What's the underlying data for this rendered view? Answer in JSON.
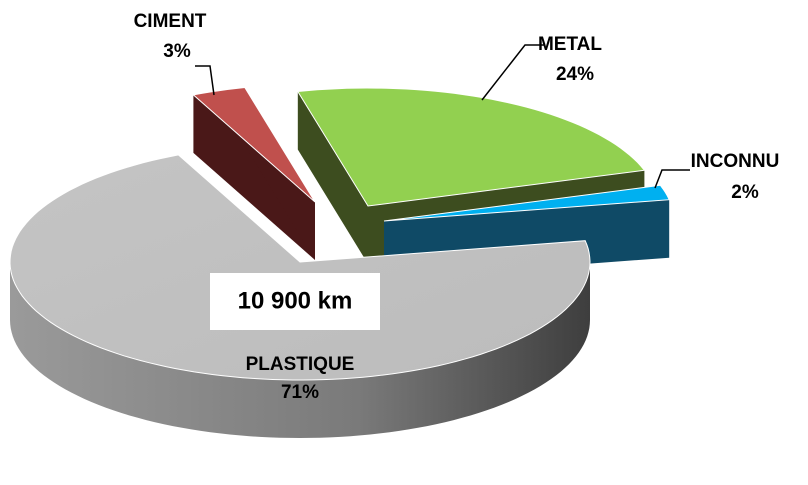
{
  "chart_data": {
    "type": "pie",
    "categories": [
      "METAL",
      "INCONNU",
      "PLASTIQUE",
      "CIMENT"
    ],
    "values": [
      24,
      2,
      71,
      3
    ],
    "value_labels": [
      "24%",
      "2%",
      "71%",
      "3%"
    ],
    "colors": [
      "#92d050",
      "#00b0f0",
      "#c0c0c0",
      "#c0504d"
    ],
    "annotation": "10 900 km"
  }
}
